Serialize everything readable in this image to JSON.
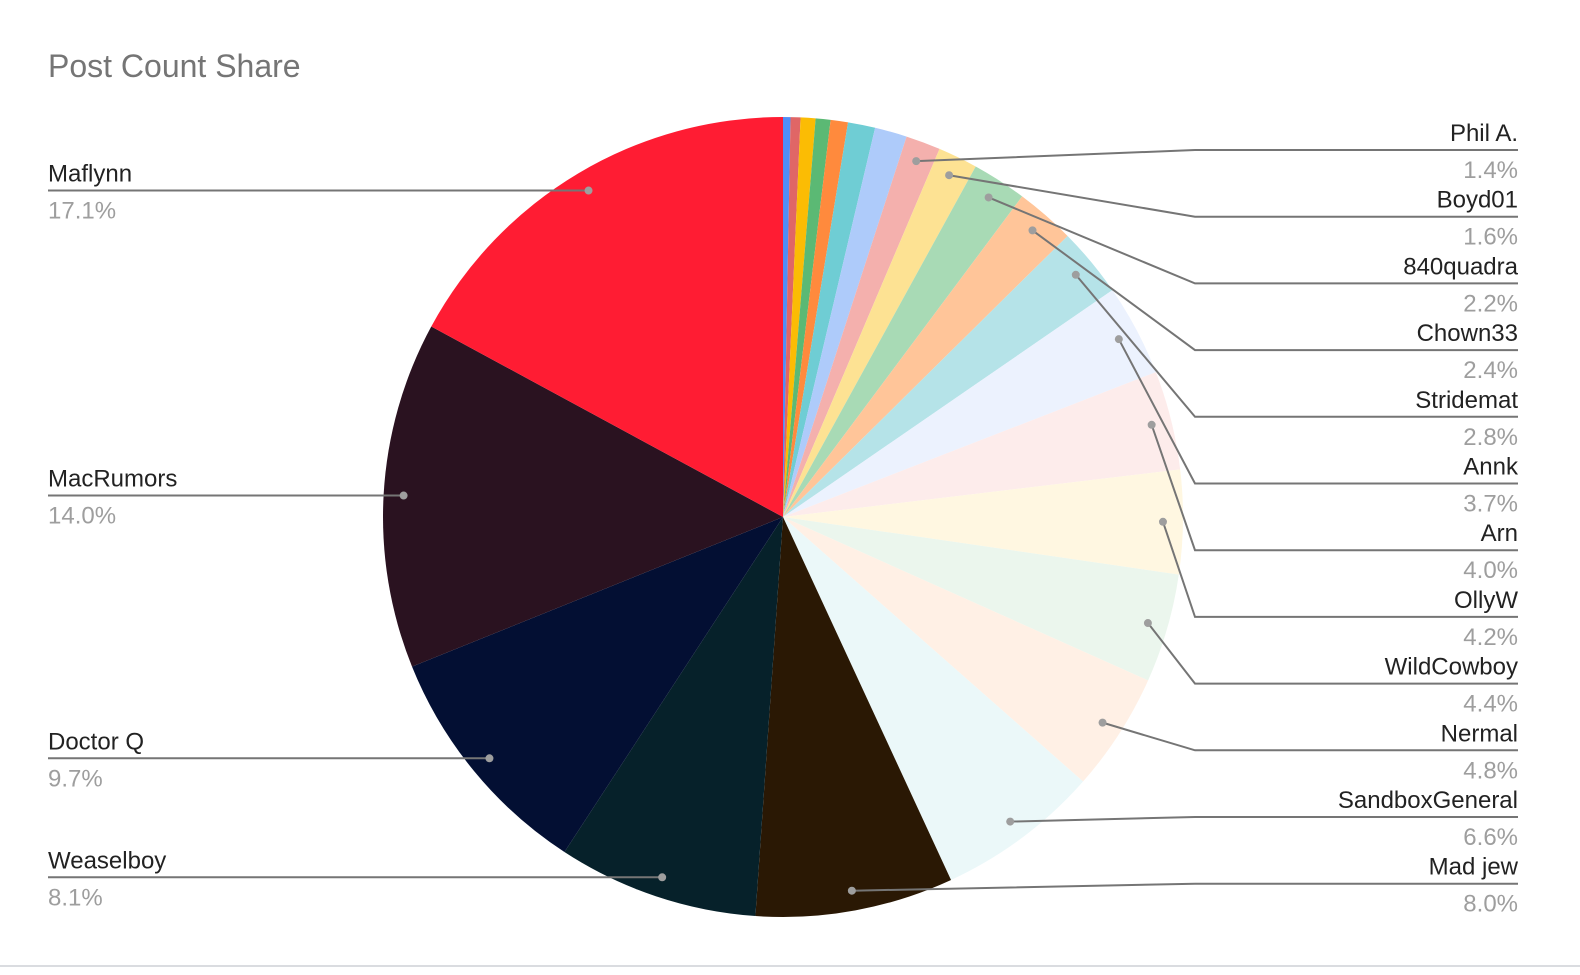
{
  "chart_data": {
    "type": "pie",
    "title": "Post Count Share",
    "categories": [
      null,
      null,
      null,
      null,
      null,
      null,
      null,
      "Phil A.",
      "Boyd01",
      "840quadra",
      "Chown33",
      "Stridemat",
      "Annk",
      "Arn",
      "OllyW",
      "WildCowboy",
      "Nermal",
      "SandboxGeneral",
      "Mad jew",
      "Weaselboy",
      "Doctor Q",
      "MacRumors",
      "Maflynn"
    ],
    "values": [
      0.3,
      0.4,
      0.6,
      0.6,
      0.7,
      1.1,
      1.3,
      1.4,
      1.6,
      2.2,
      2.4,
      2.8,
      3.7,
      4.0,
      4.2,
      4.4,
      4.8,
      6.6,
      8.0,
      8.1,
      9.7,
      14.0,
      17.1
    ],
    "value_labels": [
      null,
      null,
      null,
      null,
      null,
      null,
      null,
      "1.4%",
      "1.6%",
      "2.2%",
      "2.4%",
      "2.8%",
      "3.7%",
      "4.0%",
      "4.2%",
      "4.4%",
      "4.8%",
      "6.6%",
      "8.0%",
      "8.1%",
      "9.7%",
      "14.0%",
      "17.1%"
    ],
    "colors": [
      "#4f8ef7",
      "#e06666",
      "#fbbc04",
      "#5bb974",
      "#ff8a3d",
      "#6fcdd4",
      "#aecbfa",
      "#f4b0ad",
      "#fde293",
      "#a8dab5",
      "#ffc599",
      "#b5e3e8",
      "#ecf2fe",
      "#fdeceb",
      "#fff7e1",
      "#ebf6ed",
      "#fff0e5",
      "#ebf8f9",
      "#2a1804",
      "#06212a",
      "#030f33",
      "#2a1220",
      "#ff1c33"
    ]
  }
}
